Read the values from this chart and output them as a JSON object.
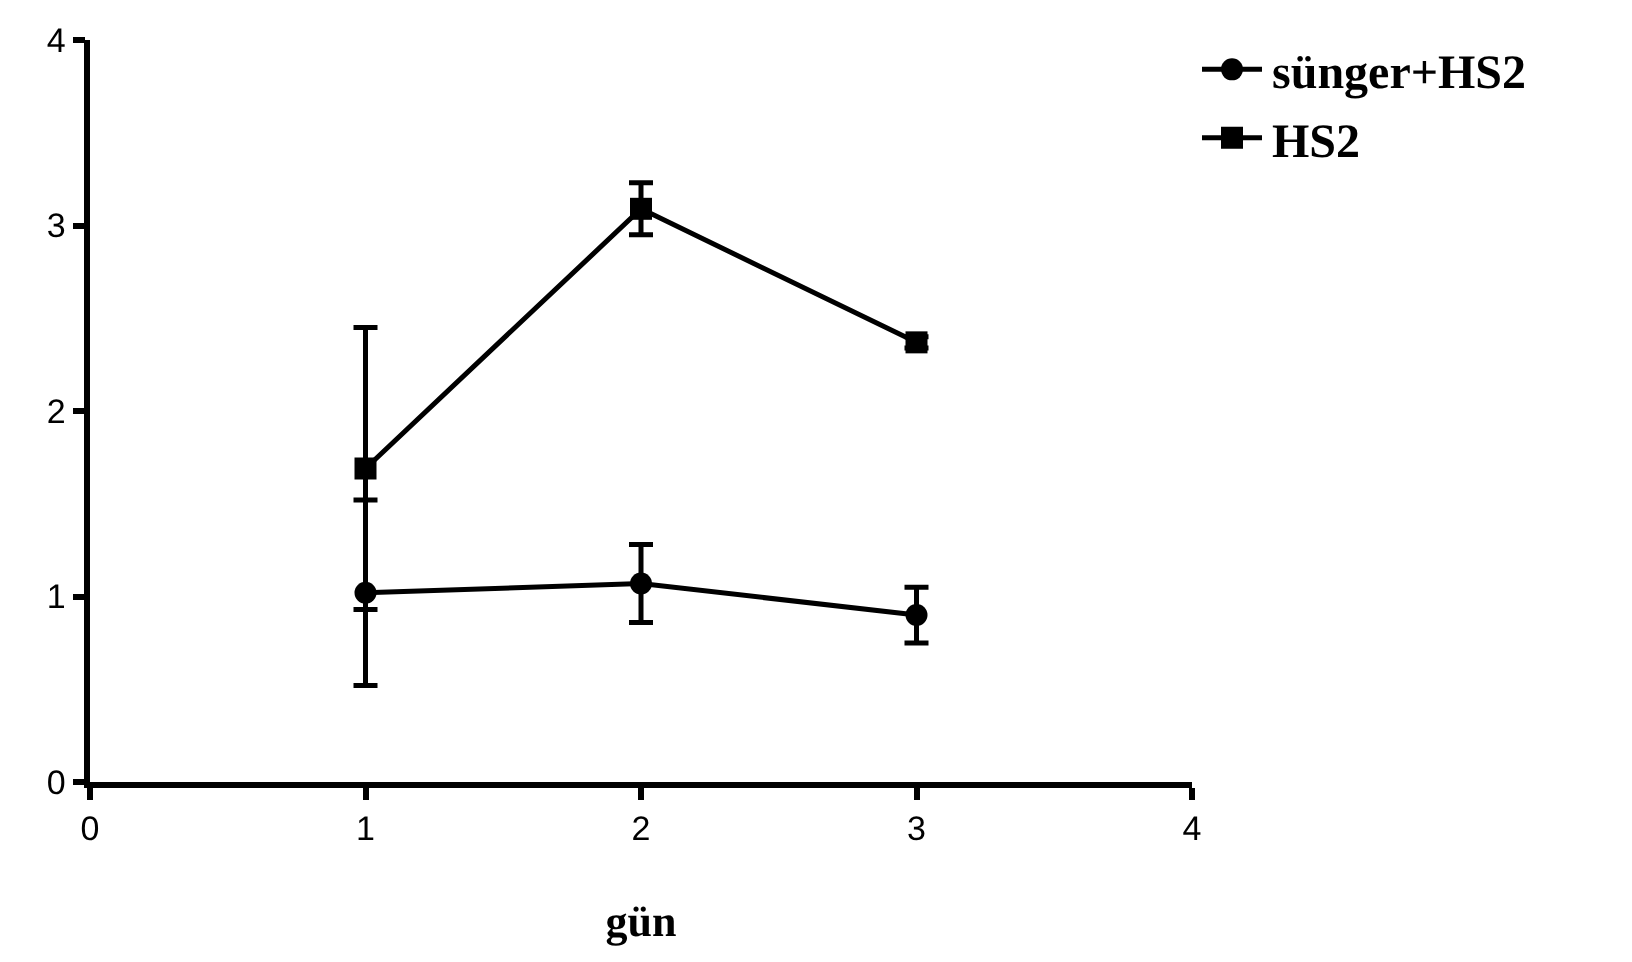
{
  "chart_data": {
    "type": "line",
    "xlabel": "gün",
    "x": [
      1,
      2,
      3
    ],
    "series": [
      {
        "name": "sünger+HS2",
        "color": "#000000",
        "marker": "circle",
        "values": [
          1.02,
          1.07,
          0.9
        ],
        "errors": [
          0.5,
          0.21,
          0.15
        ]
      },
      {
        "name": "HS2",
        "color": "#000000",
        "marker": "square",
        "values": [
          1.69,
          3.09,
          2.37
        ],
        "errors": [
          0.76,
          0.14,
          0.03
        ]
      }
    ],
    "xlim": [
      0,
      4
    ],
    "xticks": [
      0,
      1,
      2,
      3,
      4
    ],
    "ylim": [
      0,
      4
    ],
    "yticks": [
      0,
      1,
      2,
      3,
      4
    ],
    "grid": false,
    "legend": "top right",
    "line_style": "solid"
  }
}
